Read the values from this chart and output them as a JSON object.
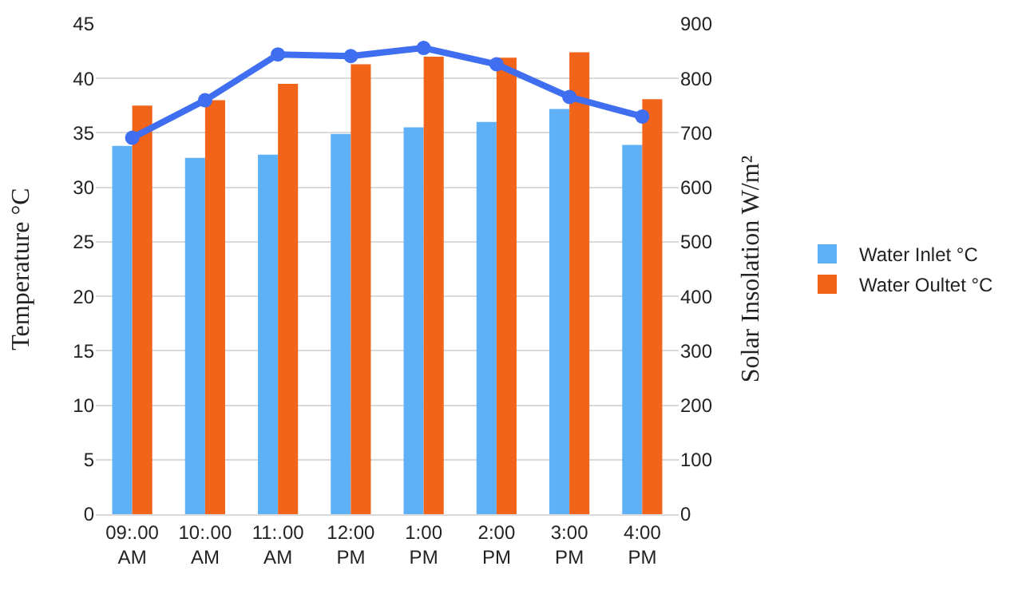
{
  "chart_data": {
    "type": "bar",
    "ylabel": "Temperature °C",
    "y2label": "Solar Insolation W/m²",
    "categories": [
      "09:.00 AM",
      "10:.00 AM",
      "11:.00 AM",
      "12:00 PM",
      "1:00 PM",
      "2:00 PM",
      "3:00 PM",
      "4:00 PM"
    ],
    "series": [
      {
        "name": "Water Inlet °C",
        "color": "#5eb0f7",
        "values": [
          33.8,
          32.7,
          33,
          34.9,
          35.5,
          36,
          37.2,
          33.9
        ]
      },
      {
        "name": "Water Oultet °C",
        "color": "#f26419",
        "values": [
          37.5,
          38,
          39.5,
          41.3,
          42,
          41.9,
          42.4,
          38.1
        ]
      },
      {
        "type": "line",
        "axis": "y2",
        "color": "#3f6ff0",
        "values": [
          691,
          760,
          844,
          841,
          856,
          826,
          766,
          730
        ]
      }
    ],
    "ylim": [
      0,
      45
    ],
    "yticks": [
      0,
      5,
      10,
      15,
      20,
      25,
      30,
      35,
      40,
      45
    ],
    "y2lim": [
      0,
      900
    ],
    "y2ticks": [
      0,
      100,
      200,
      300,
      400,
      500,
      600,
      700,
      800,
      900
    ],
    "grid": "y",
    "legend": "right",
    "marker": "circle",
    "line_style": "solid"
  }
}
